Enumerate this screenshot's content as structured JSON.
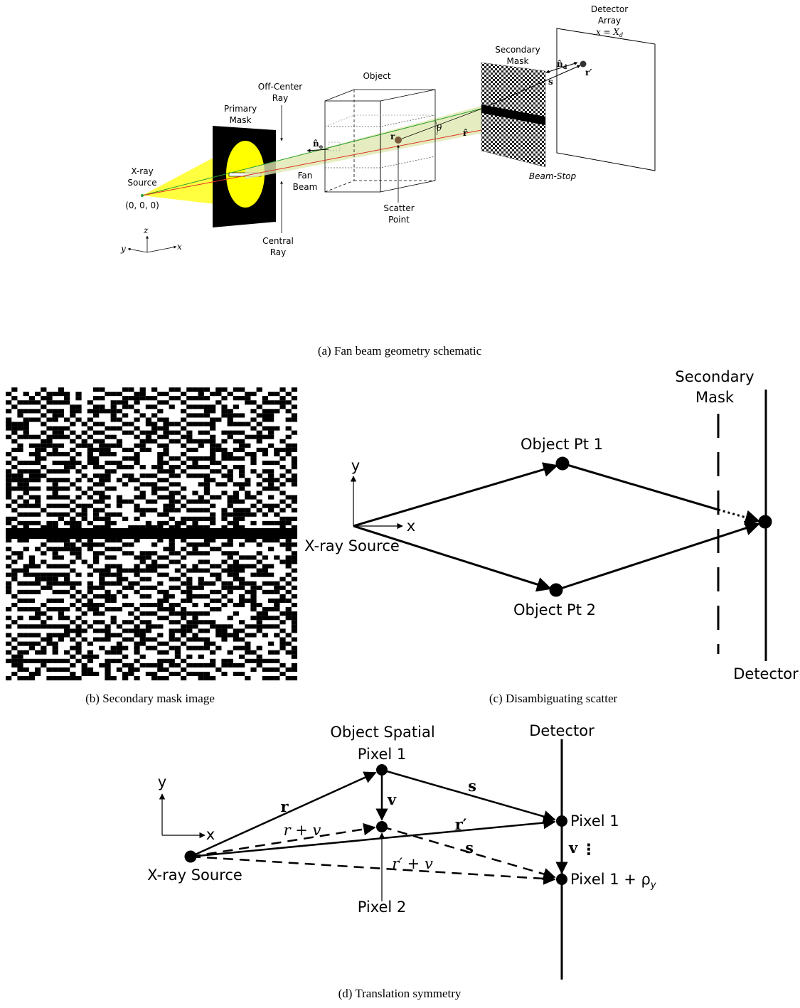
{
  "panel_a": {
    "detector_array": [
      "Detector",
      "Array"
    ],
    "detector_plane": {
      "main": "x = X",
      "sub": "d"
    },
    "secondary_mask": [
      "Secondary",
      "Mask"
    ],
    "n_d": {
      "main": "n̂",
      "sub": "d"
    },
    "r_prime": "r′",
    "s": "s",
    "object": "Object",
    "off_center_ray": [
      "Off-Center",
      "Ray"
    ],
    "primary_mask": [
      "Primary",
      "Mask"
    ],
    "r": "r",
    "theta": "θ",
    "r_hat": "r̂",
    "n_o": {
      "main": "n̂",
      "sub": "o"
    },
    "xray_source": [
      "X-ray",
      "Source"
    ],
    "origin": "(0, 0, 0)",
    "fan_beam": [
      "Fan",
      "Beam"
    ],
    "beam_stop": "Beam-Stop",
    "scatter_point": [
      "Scatter",
      "Point"
    ],
    "central_ray": [
      "Central",
      "Ray"
    ],
    "axis_z": "z",
    "axis_y": "y",
    "axis_x": "x",
    "caption": "(a) Fan beam geometry schematic"
  },
  "panel_b": {
    "caption": "(b) Secondary mask image"
  },
  "panel_c": {
    "secondary_mask": [
      "Secondary",
      "Mask"
    ],
    "object_pt_1": "Object Pt 1",
    "object_pt_2": "Object Pt 2",
    "axis_y": "y",
    "axis_x": "x",
    "xray_source": "X-ray Source",
    "detector": "Detector",
    "caption": "(c) Disambiguating scatter"
  },
  "panel_d": {
    "object_spatial": "Object Spatial",
    "pixel_1": "Pixel 1",
    "detector": "Detector",
    "axis_y": "y",
    "axis_x": "x",
    "r": "r",
    "v": "v",
    "s": "s",
    "r_plus_v": "r + v",
    "r_prime": "r′",
    "s_dashed": "s",
    "r_prime_plus_v": "r′ + v",
    "det_pixel_1": "Pixel 1",
    "v_det": "v",
    "dots": "⋮",
    "det_pixel_2": {
      "main": "Pixel 1 + ρ",
      "sub": "y"
    },
    "xray_source": "X-ray Source",
    "pixel_2": "Pixel 2",
    "caption": "(d) Translation symmetry"
  }
}
